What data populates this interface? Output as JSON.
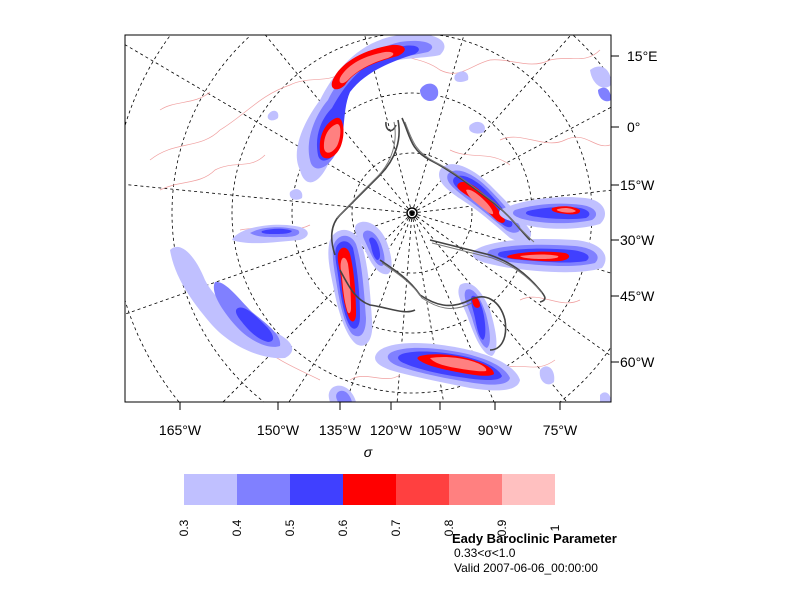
{
  "map": {
    "right_axis_labels": [
      "15°E",
      "0°",
      "15°W",
      "30°W",
      "45°W",
      "60°W"
    ],
    "bottom_axis_labels": [
      "165°W",
      "150°W",
      "135°W",
      "120°W",
      "105°W",
      "90°W",
      "75°W"
    ],
    "xlabel": "σ"
  },
  "colorbar": {
    "levels": [
      "0.3",
      "0.4",
      "0.5",
      "0.6",
      "0.7",
      "0.8",
      "0.9",
      "1"
    ],
    "colors": [
      "#c0c0ff",
      "#8080ff",
      "#4040ff",
      "#ff0000",
      "#ff4040",
      "#ff8080",
      "#ffc0c0"
    ]
  },
  "title": {
    "main": "Eady Baroclinic Parameter",
    "range": "0.33<σ<1.0",
    "valid": "Valid 2007-06-06_00:00:00"
  }
}
